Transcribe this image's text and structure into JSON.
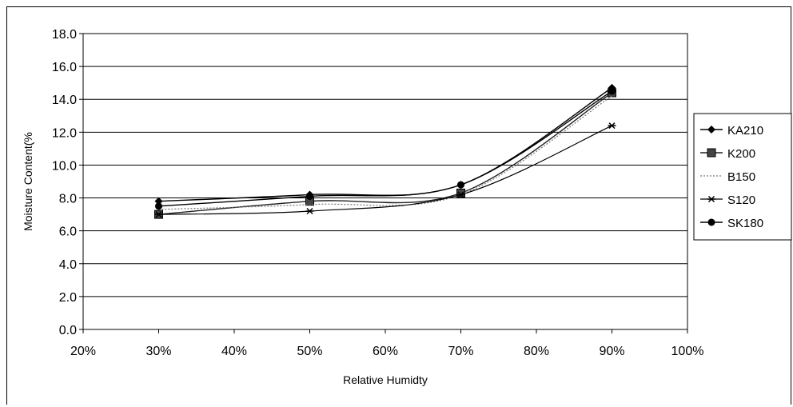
{
  "chart_data": {
    "type": "line",
    "title": "",
    "xlabel": "Relative Humidty",
    "ylabel": "Moisture Content(%",
    "x_ticks": [
      "20%",
      "30%",
      "40%",
      "50%",
      "60%",
      "70%",
      "80%",
      "90%",
      "100%"
    ],
    "y_ticks": [
      "0.0",
      "2.0",
      "4.0",
      "6.0",
      "8.0",
      "10.0",
      "12.0",
      "14.0",
      "16.0",
      "18.0"
    ],
    "xlim": [
      0.2,
      1.0
    ],
    "ylim": [
      0,
      18
    ],
    "grid": "horizontal",
    "legend_position": "right",
    "x": [
      0.3,
      0.5,
      0.7,
      0.9
    ],
    "series": [
      {
        "name": "KA210",
        "values": [
          7.8,
          8.2,
          8.8,
          14.7
        ],
        "marker": "diamond"
      },
      {
        "name": "K200",
        "values": [
          7.0,
          7.8,
          8.3,
          14.4
        ],
        "marker": "square"
      },
      {
        "name": "B150",
        "values": [
          7.3,
          7.6,
          8.2,
          14.2
        ],
        "marker": "none"
      },
      {
        "name": "S120",
        "values": [
          7.0,
          7.2,
          8.2,
          12.4
        ],
        "marker": "star"
      },
      {
        "name": "SK180",
        "values": [
          7.5,
          8.1,
          8.8,
          14.5
        ],
        "marker": "circle"
      }
    ]
  }
}
